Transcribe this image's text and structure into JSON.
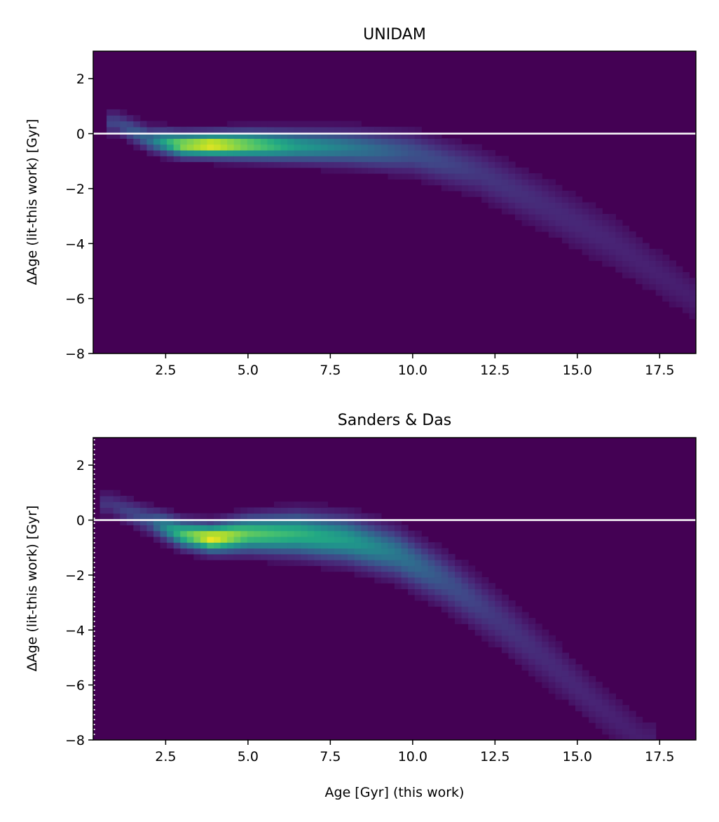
{
  "chart_data": [
    {
      "type": "heatmap",
      "title": "UNIDAM",
      "xlabel": "",
      "ylabel": "ΔAge (lit-this work) [Gyr]",
      "xlim": [
        0.3,
        18.6
      ],
      "ylim": [
        -8,
        3
      ],
      "xticks": [
        2.5,
        5.0,
        7.5,
        10.0,
        12.5,
        15.0,
        17.5
      ],
      "xtick_labels": [
        "2.5",
        "5.0",
        "7.5",
        "10.0",
        "12.5",
        "15.0",
        "17.5"
      ],
      "yticks": [
        2,
        0,
        -2,
        -4,
        -6,
        -8
      ],
      "ytick_labels": [
        "2",
        "0",
        "−2",
        "−4",
        "−6",
        "−8"
      ],
      "reference_line_y": 0,
      "colormap": "viridis",
      "density_ridge": [
        {
          "x": 1.0,
          "y": 0.4,
          "spread": 0.35,
          "density": 0.2
        },
        {
          "x": 2.0,
          "y": -0.2,
          "spread": 0.35,
          "density": 0.35
        },
        {
          "x": 3.0,
          "y": -0.4,
          "spread": 0.35,
          "density": 0.85
        },
        {
          "x": 3.9,
          "y": -0.4,
          "spread": 0.35,
          "density": 1.0
        },
        {
          "x": 5.0,
          "y": -0.4,
          "spread": 0.4,
          "density": 0.8
        },
        {
          "x": 6.5,
          "y": -0.45,
          "spread": 0.45,
          "density": 0.55
        },
        {
          "x": 8.0,
          "y": -0.5,
          "spread": 0.5,
          "density": 0.42
        },
        {
          "x": 10.0,
          "y": -0.7,
          "spread": 0.6,
          "density": 0.25
        },
        {
          "x": 12.0,
          "y": -1.4,
          "spread": 0.7,
          "density": 0.16
        },
        {
          "x": 14.0,
          "y": -2.6,
          "spread": 0.8,
          "density": 0.12
        },
        {
          "x": 16.0,
          "y": -3.9,
          "spread": 0.85,
          "density": 0.1
        },
        {
          "x": 18.6,
          "y": -6.0,
          "spread": 0.7,
          "density": 0.08
        }
      ]
    },
    {
      "type": "heatmap",
      "title": "Sanders & Das",
      "xlabel": "Age [Gyr] (this work)",
      "ylabel": "ΔAge (lit-this work) [Gyr]",
      "xlim": [
        0.3,
        18.6
      ],
      "ylim": [
        -8,
        3
      ],
      "xticks": [
        2.5,
        5.0,
        7.5,
        10.0,
        12.5,
        15.0,
        17.5
      ],
      "xtick_labels": [
        "2.5",
        "5.0",
        "7.5",
        "10.0",
        "12.5",
        "15.0",
        "17.5"
      ],
      "yticks": [
        2,
        0,
        -2,
        -4,
        -6,
        -8
      ],
      "ytick_labels": [
        "2",
        "0",
        "−2",
        "−4",
        "−6",
        "−8"
      ],
      "reference_line_y": 0,
      "colormap": "viridis",
      "density_ridge": [
        {
          "x": 0.8,
          "y": 0.6,
          "spread": 0.35,
          "density": 0.15
        },
        {
          "x": 2.0,
          "y": 0.0,
          "spread": 0.4,
          "density": 0.25
        },
        {
          "x": 3.0,
          "y": -0.5,
          "spread": 0.4,
          "density": 0.7
        },
        {
          "x": 3.9,
          "y": -0.65,
          "spread": 0.4,
          "density": 1.0
        },
        {
          "x": 5.0,
          "y": -0.5,
          "spread": 0.5,
          "density": 0.75
        },
        {
          "x": 6.5,
          "y": -0.5,
          "spread": 0.6,
          "density": 0.65
        },
        {
          "x": 8.0,
          "y": -0.7,
          "spread": 0.65,
          "density": 0.55
        },
        {
          "x": 9.5,
          "y": -1.2,
          "spread": 0.7,
          "density": 0.4
        },
        {
          "x": 11.0,
          "y": -2.2,
          "spread": 0.75,
          "density": 0.25
        },
        {
          "x": 12.5,
          "y": -3.5,
          "spread": 0.8,
          "density": 0.16
        },
        {
          "x": 14.0,
          "y": -5.0,
          "spread": 0.8,
          "density": 0.12
        },
        {
          "x": 15.5,
          "y": -6.6,
          "spread": 0.75,
          "density": 0.1
        },
        {
          "x": 17.0,
          "y": -8.0,
          "spread": 0.7,
          "density": 0.08
        }
      ]
    }
  ]
}
